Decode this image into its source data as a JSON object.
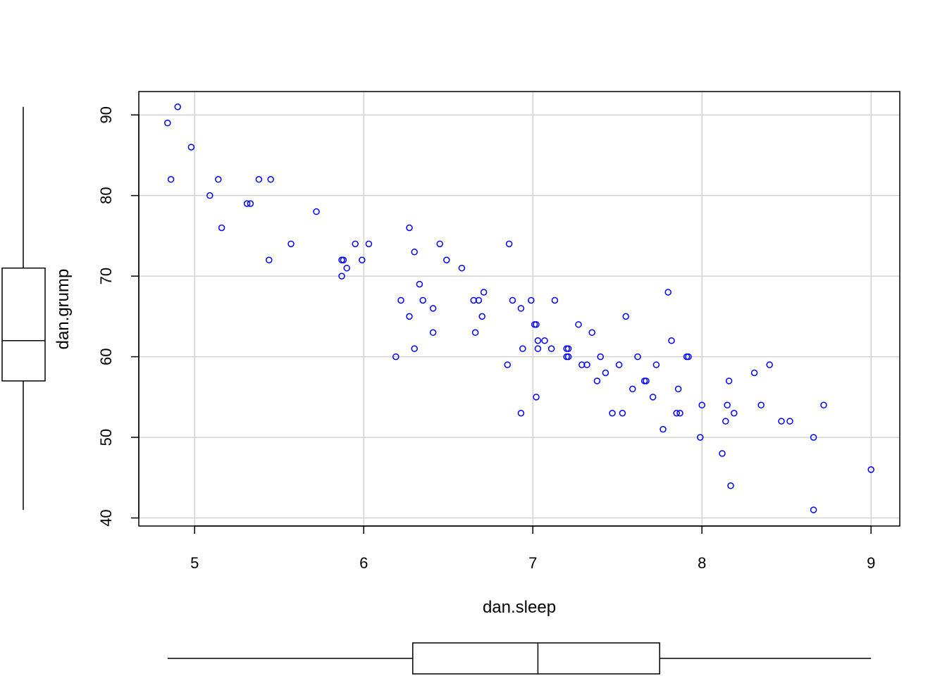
{
  "chart_data": {
    "type": "scatter",
    "title": "",
    "xlabel": "dan.sleep",
    "ylabel": "dan.grump",
    "xlim": [
      4.67,
      9.17
    ],
    "ylim": [
      39.0,
      92.9
    ],
    "xticks": [
      5,
      6,
      7,
      8,
      9
    ],
    "yticks": [
      40,
      50,
      60,
      70,
      80,
      90
    ],
    "grid": true,
    "point_color": "#0000ff",
    "grid_color": "#d3d3d3",
    "points": [
      [
        4.84,
        89
      ],
      [
        4.9,
        91
      ],
      [
        4.98,
        86
      ],
      [
        4.86,
        82
      ],
      [
        5.09,
        80
      ],
      [
        5.14,
        82
      ],
      [
        5.16,
        76
      ],
      [
        5.31,
        79
      ],
      [
        5.33,
        79
      ],
      [
        5.38,
        82
      ],
      [
        5.45,
        82
      ],
      [
        5.44,
        72
      ],
      [
        5.57,
        74
      ],
      [
        5.72,
        78
      ],
      [
        5.87,
        70
      ],
      [
        5.87,
        72
      ],
      [
        5.88,
        72
      ],
      [
        5.9,
        71
      ],
      [
        5.95,
        74
      ],
      [
        5.99,
        72
      ],
      [
        6.03,
        74
      ],
      [
        6.19,
        60
      ],
      [
        6.22,
        67
      ],
      [
        6.27,
        76
      ],
      [
        6.27,
        65
      ],
      [
        6.3,
        73
      ],
      [
        6.3,
        61
      ],
      [
        6.33,
        69
      ],
      [
        6.35,
        67
      ],
      [
        6.41,
        66
      ],
      [
        6.41,
        63
      ],
      [
        6.45,
        74
      ],
      [
        6.49,
        72
      ],
      [
        6.58,
        71
      ],
      [
        6.65,
        67
      ],
      [
        6.66,
        63
      ],
      [
        6.68,
        67
      ],
      [
        6.7,
        65
      ],
      [
        6.71,
        68
      ],
      [
        6.85,
        59
      ],
      [
        6.86,
        74
      ],
      [
        6.88,
        67
      ],
      [
        6.93,
        66
      ],
      [
        6.93,
        53
      ],
      [
        6.94,
        61
      ],
      [
        6.99,
        67
      ],
      [
        7.01,
        64
      ],
      [
        7.02,
        64
      ],
      [
        7.02,
        55
      ],
      [
        7.03,
        62
      ],
      [
        7.03,
        61
      ],
      [
        7.07,
        62
      ],
      [
        7.11,
        61
      ],
      [
        7.13,
        67
      ],
      [
        7.2,
        61
      ],
      [
        7.2,
        60
      ],
      [
        7.21,
        61
      ],
      [
        7.21,
        60
      ],
      [
        7.27,
        64
      ],
      [
        7.29,
        59
      ],
      [
        7.32,
        59
      ],
      [
        7.35,
        63
      ],
      [
        7.38,
        57
      ],
      [
        7.4,
        60
      ],
      [
        7.43,
        58
      ],
      [
        7.47,
        53
      ],
      [
        7.51,
        59
      ],
      [
        7.53,
        53
      ],
      [
        7.55,
        65
      ],
      [
        7.59,
        56
      ],
      [
        7.62,
        60
      ],
      [
        7.66,
        57
      ],
      [
        7.67,
        57
      ],
      [
        7.71,
        55
      ],
      [
        7.73,
        59
      ],
      [
        7.77,
        51
      ],
      [
        7.8,
        68
      ],
      [
        7.82,
        62
      ],
      [
        7.85,
        53
      ],
      [
        7.86,
        56
      ],
      [
        7.87,
        53
      ],
      [
        7.91,
        60
      ],
      [
        7.92,
        60
      ],
      [
        7.99,
        50
      ],
      [
        8.0,
        54
      ],
      [
        8.12,
        48
      ],
      [
        8.14,
        52
      ],
      [
        8.15,
        54
      ],
      [
        8.16,
        57
      ],
      [
        8.17,
        44
      ],
      [
        8.19,
        53
      ],
      [
        8.31,
        58
      ],
      [
        8.35,
        54
      ],
      [
        8.4,
        59
      ],
      [
        8.47,
        52
      ],
      [
        8.52,
        52
      ],
      [
        8.66,
        50
      ],
      [
        8.66,
        41
      ],
      [
        8.72,
        54
      ],
      [
        9.0,
        46
      ]
    ],
    "x_boxplot": {
      "min": 4.84,
      "q1": 6.29,
      "median": 7.03,
      "q3": 7.75,
      "max": 9.0
    },
    "y_boxplot": {
      "min": 41,
      "q1": 57,
      "median": 62,
      "q3": 71,
      "max": 91
    }
  }
}
